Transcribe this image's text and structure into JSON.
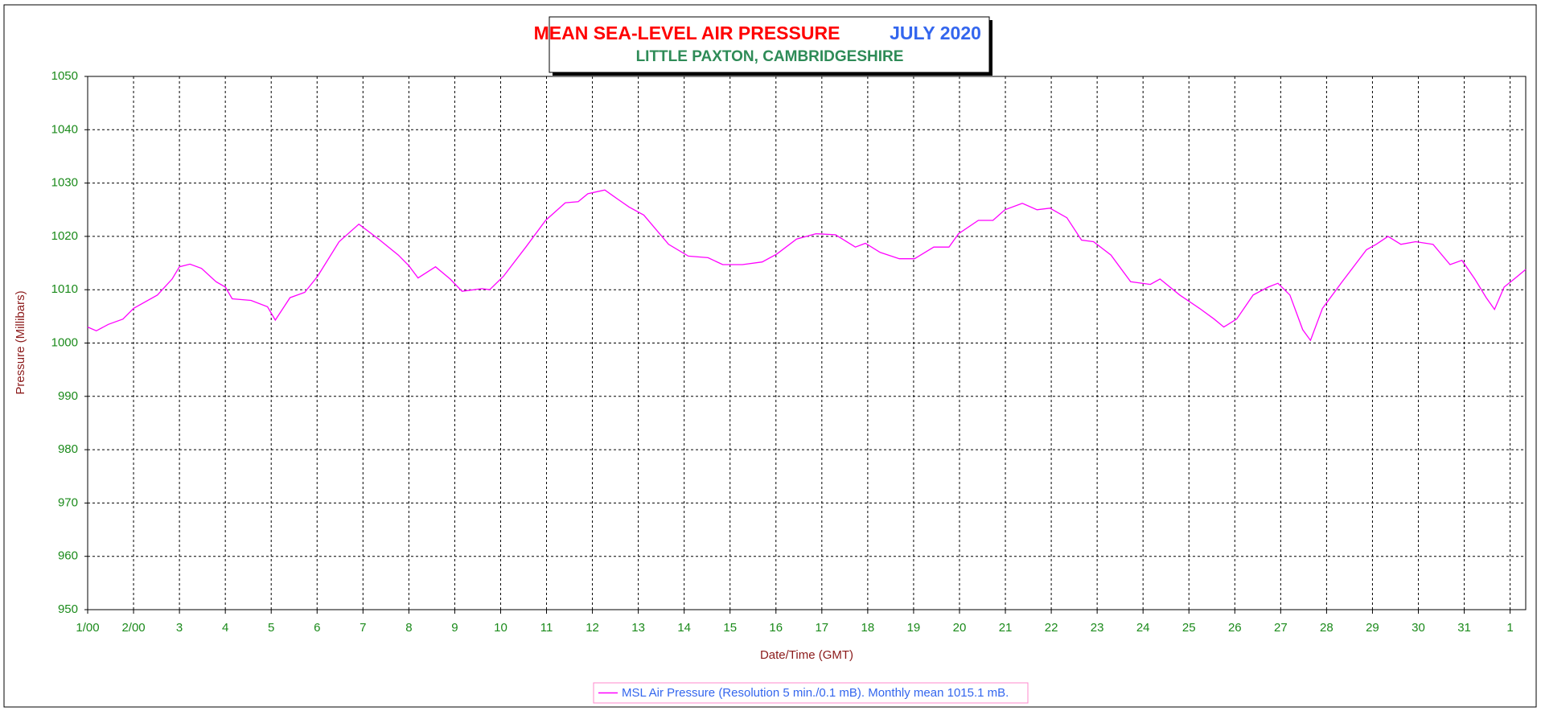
{
  "chart_data": {
    "type": "line",
    "title": "MEAN SEA-LEVEL AIR PRESSURE",
    "title_period": "JULY 2020",
    "subtitle": "LITTLE PAXTON, CAMBRIDGESHIRE",
    "y_label": "Pressure (Millibars)",
    "x_label": "Date/Time (GMT)",
    "xlim": [
      0,
      31.34
    ],
    "ylim": [
      950,
      1050
    ],
    "yticks": [
      950,
      960,
      970,
      980,
      990,
      1000,
      1010,
      1020,
      1030,
      1040,
      1050
    ],
    "xticks": [
      {
        "value": 0,
        "label": "1/00"
      },
      {
        "value": 1,
        "label": "2/00"
      },
      {
        "value": 2,
        "label": "3"
      },
      {
        "value": 3,
        "label": "4"
      },
      {
        "value": 4,
        "label": "5"
      },
      {
        "value": 5,
        "label": "6"
      },
      {
        "value": 6,
        "label": "7"
      },
      {
        "value": 7,
        "label": "8"
      },
      {
        "value": 8,
        "label": "9"
      },
      {
        "value": 9,
        "label": "10"
      },
      {
        "value": 10,
        "label": "11"
      },
      {
        "value": 11,
        "label": "12"
      },
      {
        "value": 12,
        "label": "13"
      },
      {
        "value": 13,
        "label": "14"
      },
      {
        "value": 14,
        "label": "15"
      },
      {
        "value": 15,
        "label": "16"
      },
      {
        "value": 16,
        "label": "17"
      },
      {
        "value": 17,
        "label": "18"
      },
      {
        "value": 18,
        "label": "19"
      },
      {
        "value": 19,
        "label": "20"
      },
      {
        "value": 20,
        "label": "21"
      },
      {
        "value": 21,
        "label": "22"
      },
      {
        "value": 22,
        "label": "23"
      },
      {
        "value": 23,
        "label": "24"
      },
      {
        "value": 24,
        "label": "25"
      },
      {
        "value": 25,
        "label": "26"
      },
      {
        "value": 26,
        "label": "27"
      },
      {
        "value": 27,
        "label": "28"
      },
      {
        "value": 28,
        "label": "29"
      },
      {
        "value": 29,
        "label": "30"
      },
      {
        "value": 30,
        "label": "31"
      },
      {
        "value": 31,
        "label": "1"
      }
    ],
    "grid": true,
    "x": [
      0,
      0.19,
      0.45,
      0.77,
      1.0,
      1.52,
      1.84,
      2.0,
      2.23,
      2.48,
      2.8,
      3.0,
      3.15,
      3.56,
      3.92,
      4.09,
      4.41,
      4.73,
      5.01,
      5.48,
      5.91,
      6.34,
      6.77,
      7.0,
      7.2,
      7.58,
      7.9,
      8.16,
      8.59,
      8.76,
      9.06,
      9.55,
      9.98,
      10.41,
      10.69,
      10.9,
      11.27,
      11.55,
      11.8,
      12.12,
      12.66,
      13.09,
      13.52,
      13.84,
      14.27,
      14.7,
      15.02,
      15.45,
      15.87,
      16.3,
      16.73,
      16.95,
      17.27,
      17.69,
      18.02,
      18.44,
      18.77,
      18.98,
      19.41,
      19.73,
      19.99,
      20.37,
      20.69,
      20.97,
      21.34,
      21.66,
      21.92,
      22.3,
      22.73,
      23.16,
      23.37,
      23.8,
      24.23,
      24.55,
      24.76,
      25.04,
      25.4,
      25.73,
      25.94,
      26.2,
      26.48,
      26.65,
      26.91,
      27.34,
      27.87,
      28.08,
      28.34,
      28.62,
      28.94,
      29.32,
      29.69,
      29.95,
      30.23,
      30.48,
      30.66,
      30.87,
      31.09,
      31.34
    ],
    "series": [
      {
        "name": "MSL Air Pressure (Resolution 5 min./0.1 mB). Monthly mean 1015.1 mB.",
        "color": "#ff00ff",
        "values": [
          1003,
          1002.3,
          1003.5,
          1004.5,
          1006.5,
          1009,
          1012,
          1014.3,
          1014.8,
          1014,
          1011.5,
          1010.5,
          1008.3,
          1008,
          1006.8,
          1004.3,
          1008.5,
          1009.5,
          1012.5,
          1019,
          1022.3,
          1019.5,
          1016.5,
          1014.5,
          1012.2,
          1014.3,
          1012,
          1009.7,
          1010.2,
          1010,
          1012.5,
          1018,
          1023,
          1026.3,
          1026.5,
          1028,
          1028.7,
          1027,
          1025.5,
          1024,
          1018.5,
          1016.3,
          1016,
          1014.7,
          1014.7,
          1015.2,
          1016.7,
          1019.5,
          1020.5,
          1020.3,
          1018,
          1018.7,
          1017,
          1015.8,
          1015.8,
          1018,
          1018,
          1020.5,
          1023,
          1023,
          1025,
          1026.2,
          1025,
          1025.3,
          1023.5,
          1019.3,
          1019,
          1016.5,
          1011.5,
          1011,
          1012,
          1009,
          1006.5,
          1004.5,
          1003,
          1004.5,
          1009,
          1010.5,
          1011.2,
          1009,
          1002.5,
          1000.5,
          1006.5,
          1011.5,
          1017.5,
          1018.5,
          1020,
          1018.5,
          1019,
          1018.5,
          1014.7,
          1015.5,
          1012,
          1008.5,
          1006.3,
          1010.5,
          1012,
          1013.8
        ]
      }
    ]
  }
}
